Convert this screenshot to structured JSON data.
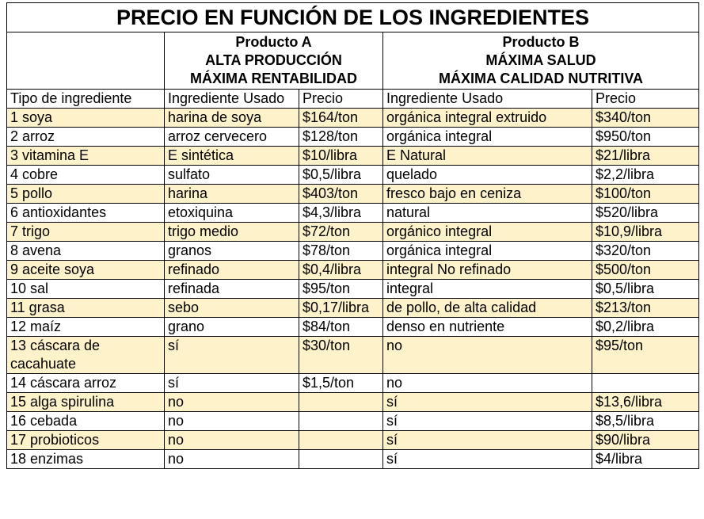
{
  "title": "PRECIO EN FUNCIÓN DE LOS INGREDIENTES",
  "products": [
    {
      "lines": [
        "Producto A",
        "ALTA PRODUCCIÓN",
        "MÁXIMA RENTABILIDAD"
      ]
    },
    {
      "lines": [
        "Producto B",
        "MÁXIMA SALUD",
        "MÁXIMA CALIDAD NUTRITIVA"
      ]
    }
  ],
  "columns": [
    "Tipo de ingrediente",
    "Ingrediente Usado",
    "Precio",
    "Ingrediente Usado",
    "Precio"
  ],
  "rows": [
    [
      "1 soya",
      "harina de soya",
      "$164/ton",
      "orgánica integral extruido",
      "$340/ton"
    ],
    [
      "2 arroz",
      "arroz cervecero",
      "$128/ton",
      "orgánica integral",
      "$950/ton"
    ],
    [
      "3 vitamina E",
      "E sintética",
      "$10/libra",
      "E Natural",
      "$21/libra"
    ],
    [
      "4 cobre",
      "sulfato",
      "$0,5/libra",
      "quelado",
      "$2,2/libra"
    ],
    [
      "5 pollo",
      "harina",
      "$403/ton",
      "fresco bajo en ceniza",
      "$100/ton"
    ],
    [
      "6 antioxidantes",
      "etoxiquina",
      "$4,3/libra",
      "natural",
      "$520/libra"
    ],
    [
      "7 trigo",
      "trigo medio",
      "$72/ton",
      "orgánico integral",
      "$10,9/libra"
    ],
    [
      "8 avena",
      "granos",
      "$78/ton",
      "orgánica integral",
      "$320/ton"
    ],
    [
      "9 aceite soya",
      "refinado",
      "$0,4/libra",
      "integral No refinado",
      "$500/ton"
    ],
    [
      "10 sal",
      "refinada",
      "$95/ton",
      "integral",
      "$0,5/libra"
    ],
    [
      "11 grasa",
      "sebo",
      "$0,17/libra",
      "de pollo, de alta calidad",
      "$213/ton"
    ],
    [
      "12 maíz",
      "grano",
      "$84/ton",
      "denso en nutriente",
      "$0,2/libra"
    ],
    [
      "13 cáscara de cacahuate",
      "sí",
      "$30/ton",
      "no",
      "$95/ton"
    ],
    [
      "14 cáscara arroz",
      "sí",
      "$1,5/ton",
      "no",
      null
    ],
    [
      "15 alga spirulina",
      "no",
      null,
      "sí",
      "$13,6/libra"
    ],
    [
      "16 cebada",
      "no",
      null,
      "sí",
      "$8,5/libra"
    ],
    [
      "17 probioticos",
      "no",
      null,
      "sí",
      "$90/libra"
    ],
    [
      "18 enzimas",
      "no",
      null,
      "sí",
      "$4/libra"
    ]
  ]
}
